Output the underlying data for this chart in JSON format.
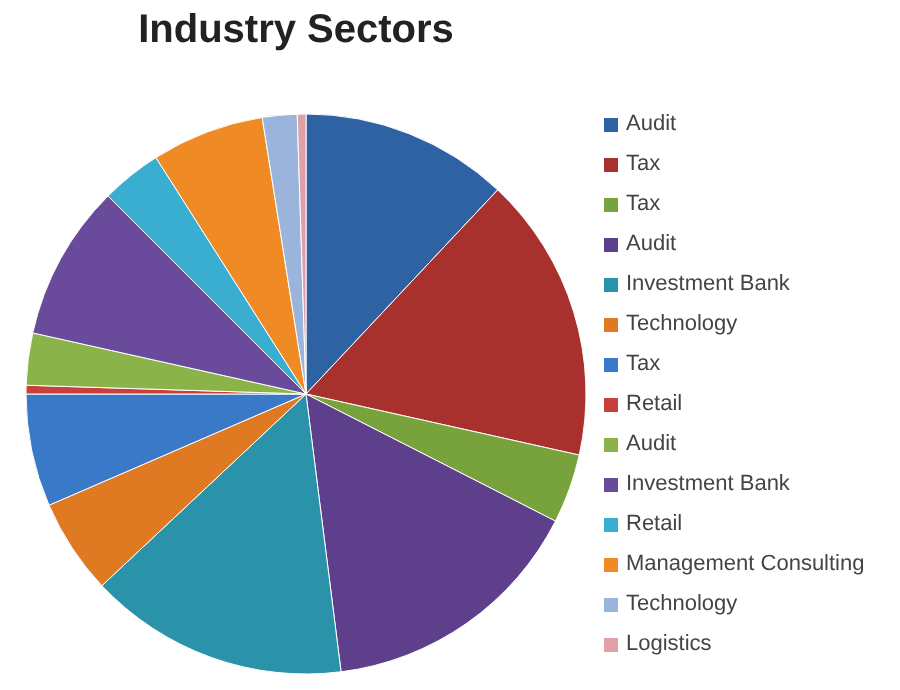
{
  "chart_data": {
    "type": "pie",
    "title": "Industry Sectors",
    "categories": [
      "Audit",
      "Tax",
      "Tax",
      "Audit",
      "Investment Bank",
      "Technology",
      "Tax",
      "Retail",
      "Audit",
      "Investment Bank",
      "Retail",
      "Management Consulting",
      "Technology",
      "Logistics"
    ],
    "values": [
      12,
      16.5,
      4,
      15.5,
      15,
      5.5,
      6.5,
      0.5,
      3,
      9,
      3.5,
      6.5,
      2,
      0.5
    ],
    "colors": [
      "#2f62a3",
      "#a9312d",
      "#78a23c",
      "#5e3f8c",
      "#2b93a9",
      "#e07a22",
      "#3a78c8",
      "#c8403c",
      "#8ab44a",
      "#6a4a9a",
      "#3aaed0",
      "#f08a24",
      "#9ab4dc",
      "#e0a0a8"
    ],
    "legend": "right"
  }
}
